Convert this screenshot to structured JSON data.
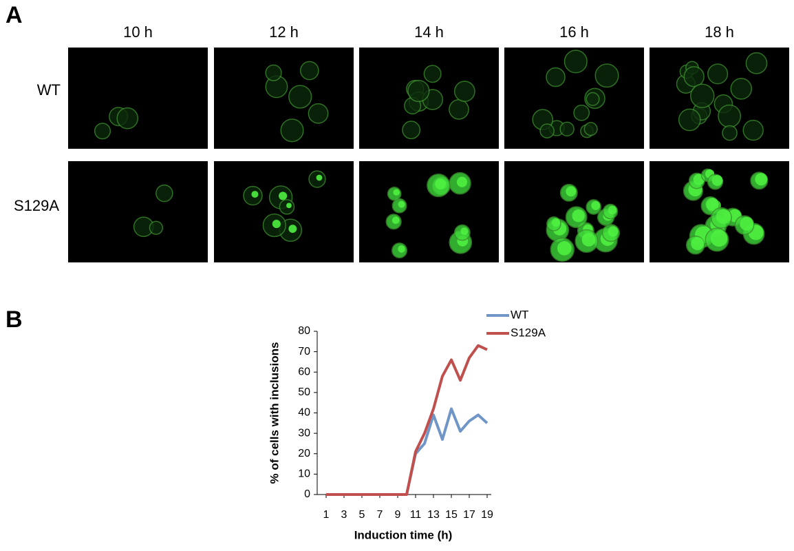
{
  "panel_labels": [
    "A",
    "B"
  ],
  "panel_a": {
    "columns": [
      "10 h",
      "12 h",
      "14 h",
      "16 h",
      "18 h"
    ],
    "rows": [
      "WT",
      "S129A"
    ]
  },
  "chart_data": {
    "type": "line",
    "x_label": "Induction time (h)",
    "y_label": "% of cells with inclusions",
    "x": [
      1,
      2,
      3,
      4,
      5,
      6,
      7,
      8,
      9,
      10,
      11,
      12,
      13,
      14,
      15,
      16,
      17,
      18,
      19
    ],
    "series": [
      {
        "name": "WT",
        "color": "#7096c8",
        "values": [
          0,
          0,
          0,
          0,
          0,
          0,
          0,
          0,
          0,
          0,
          20,
          25,
          39,
          27,
          42,
          31,
          36,
          39,
          35
        ]
      },
      {
        "name": "S129A",
        "color": "#c0504d",
        "values": [
          0,
          0,
          0,
          0,
          0,
          0,
          0,
          0,
          0,
          0,
          21,
          30,
          42,
          58,
          66,
          56,
          67,
          73,
          71
        ]
      }
    ],
    "xlim": [
      0,
      20
    ],
    "xticks": [
      1,
      3,
      5,
      7,
      9,
      11,
      13,
      15,
      17,
      19
    ],
    "ylim": [
      0,
      80
    ],
    "yticks": [
      0,
      10,
      20,
      30,
      40,
      50,
      60,
      70,
      80
    ],
    "legend": "top-right"
  }
}
